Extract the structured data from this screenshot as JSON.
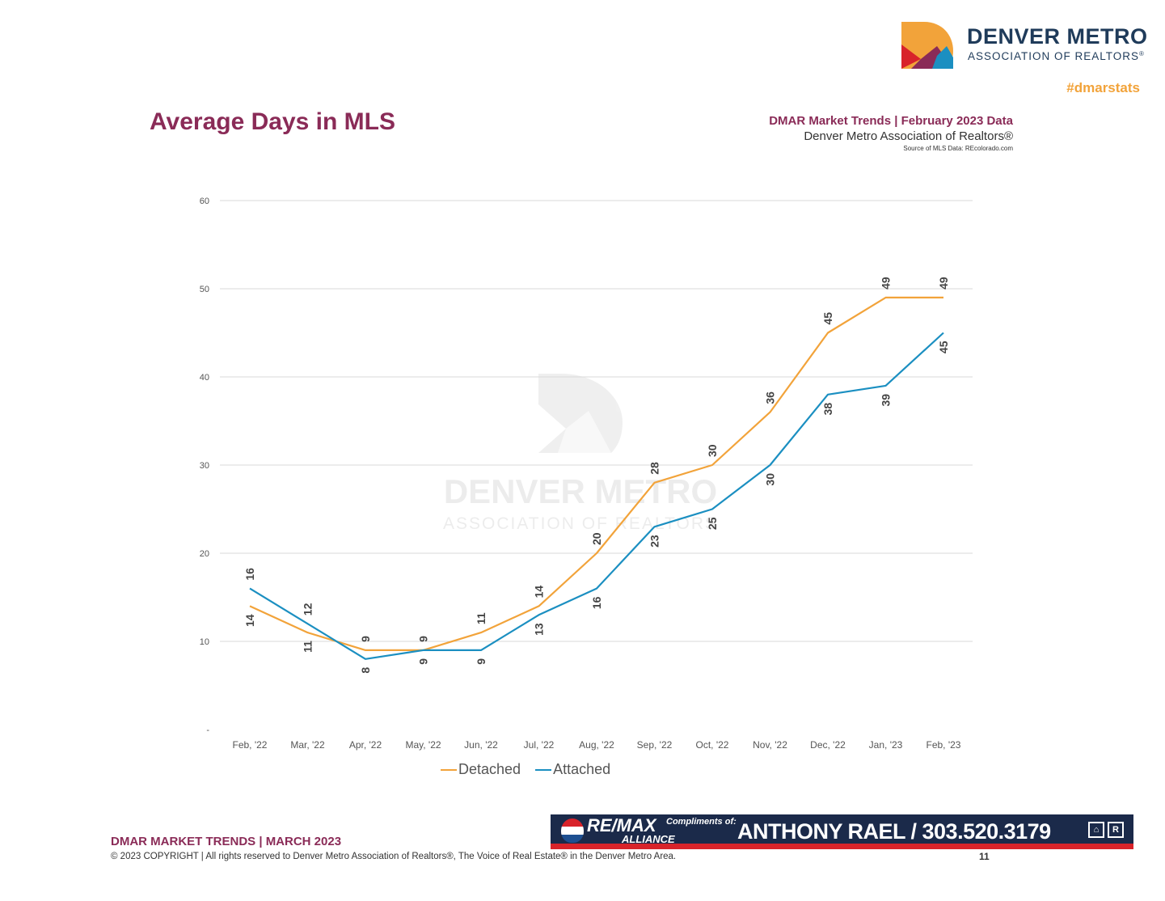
{
  "header": {
    "logo_line1": "DENVER METRO",
    "logo_line2": "ASSOCIATION OF REALTORS",
    "logo_mark": "®",
    "hashtag": "#dmarstats"
  },
  "title": "Average Days in MLS",
  "source": {
    "line1": "DMAR Market Trends | February 2023 Data",
    "line2": "Denver Metro Association of Realtors®",
    "line3": "Source of MLS Data: REcolorado.com"
  },
  "watermark": {
    "line1": "DENVER METRO",
    "line2": "ASSOCIATION OF REALTORS"
  },
  "chart_data": {
    "type": "line",
    "categories": [
      "Feb, '22",
      "Mar, '22",
      "Apr, '22",
      "May, '22",
      "Jun, '22",
      "Jul, '22",
      "Aug, '22",
      "Sep, '22",
      "Oct, '22",
      "Nov, '22",
      "Dec, '22",
      "Jan, '23",
      "Feb, '23"
    ],
    "series": [
      {
        "name": "Detached",
        "color": "#f2a33a",
        "values": [
          14,
          11,
          9,
          9,
          11,
          14,
          20,
          28,
          30,
          36,
          45,
          49,
          49
        ],
        "label_side": [
          "below",
          "below",
          "above",
          "above",
          "above",
          "above",
          "above",
          "above",
          "above",
          "above",
          "above",
          "above",
          "above"
        ]
      },
      {
        "name": "Attached",
        "color": "#1b8fc1",
        "values": [
          16,
          12,
          8,
          9,
          9,
          13,
          16,
          23,
          25,
          30,
          38,
          39,
          45
        ],
        "label_side": [
          "above",
          "above",
          "below",
          "below",
          "below",
          "below",
          "below",
          "below",
          "below",
          "below",
          "below",
          "below",
          "below"
        ]
      }
    ],
    "ylim": [
      0,
      60
    ],
    "yticks": [
      0,
      10,
      20,
      30,
      40,
      50,
      60
    ],
    "ytick_labels": [
      "-",
      "10",
      "20",
      "30",
      "40",
      "50",
      "60"
    ],
    "grid": true,
    "legend": "bottom"
  },
  "footer": {
    "title": "DMAR MARKET TRENDS | MARCH 2023",
    "copyright": "© 2023 COPYRIGHT | All rights reserved to Denver Metro Association of Realtors®, The Voice of Real Estate® in the Denver Metro Area.",
    "page": "11"
  },
  "banner": {
    "brand": "RE/MAX",
    "brand2": "ALLIANCE",
    "compliments": "Compliments of:",
    "agent": "ANTHONY RAEL / 303.520.3179",
    "icons": [
      "equal-housing-icon",
      "realtor-icon"
    ]
  }
}
